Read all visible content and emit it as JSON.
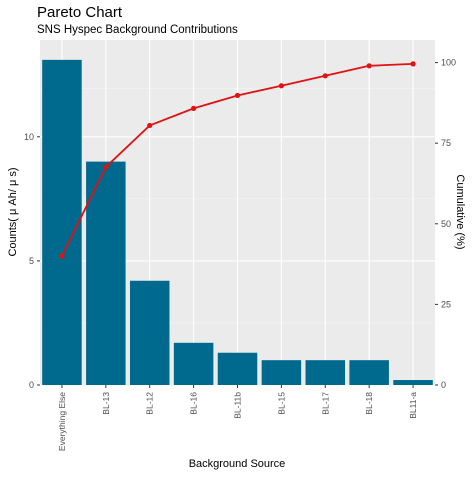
{
  "chart_data": {
    "type": "bar",
    "title": "Pareto Chart",
    "subtitle": "SNS Hyspec Background Contributions",
    "xlabel": "Background Source",
    "ylabel": "Counts( μ Ah/ μ s)",
    "y2label": "Cumulative (%)",
    "categories": [
      "Everything Else",
      "BL-13",
      "BL-12",
      "BL-16",
      "BL-11b",
      "BL-15",
      "BL-17",
      "BL-18",
      "BL11-a"
    ],
    "series": [
      {
        "type": "bar",
        "axis": "left",
        "values": [
          13.1,
          9.0,
          4.2,
          1.7,
          1.3,
          1.0,
          1.0,
          1.0,
          0.2
        ]
      },
      {
        "type": "line",
        "axis": "right",
        "values": [
          40.0,
          67.6,
          80.5,
          85.8,
          89.8,
          92.8,
          95.9,
          99.0,
          99.6
        ]
      }
    ],
    "ylim": [
      0,
      13.9
    ],
    "yticks": [
      0,
      5,
      10
    ],
    "y2lim": [
      0,
      107
    ],
    "y2ticks": [
      0,
      25,
      50,
      75,
      100
    ],
    "grid": true,
    "colors": {
      "panel": "#ebebeb",
      "grid_major": "#ffffff",
      "bar": "#006a8e",
      "line": "#e01212"
    }
  }
}
